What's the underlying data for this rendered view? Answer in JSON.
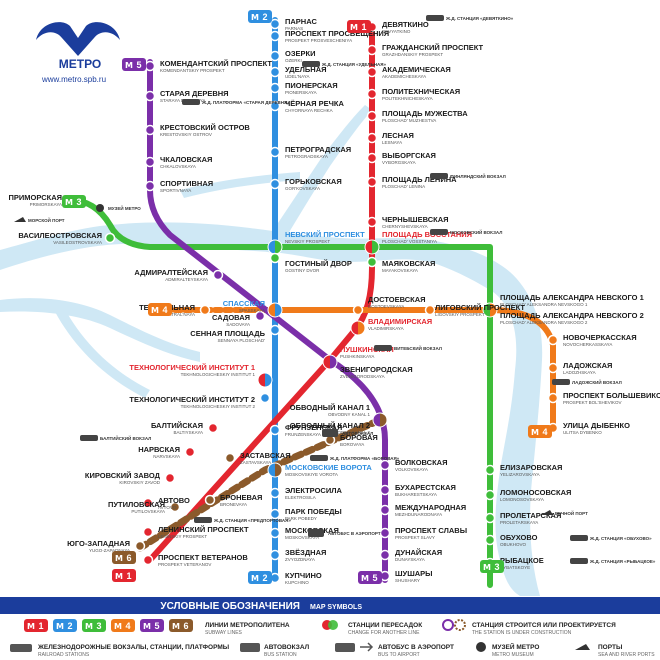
{
  "logo": {
    "text": "МЕТРО",
    "url": "www.metro.spb.ru"
  },
  "colors": {
    "line1": "#e3262f",
    "line2": "#2f8fe0",
    "line3": "#3fbd3a",
    "line4": "#f07a1a",
    "line5": "#7b2fa9",
    "line6": "#8b5a2b",
    "water": "#cde9f6",
    "legend": "#1b3d9c"
  },
  "line_badges": {
    "l1": "1",
    "l2": "2",
    "l3": "3",
    "l4": "4",
    "l5": "5",
    "l6": "6"
  },
  "stations": {
    "parnas": {
      "ru": "ПАРНАС",
      "en": "PARNAS"
    },
    "prosvescheniya": {
      "ru": "ПРОСПЕКТ ПРОСВЕЩЕНИЯ",
      "en": "PROSPEKT PROSVESCHENIYA"
    },
    "ozerki": {
      "ru": "ОЗЕРКИ",
      "en": "OZERKI"
    },
    "udelnaya": {
      "ru": "УДЕЛЬНАЯ",
      "en": "UDEL'NAYA"
    },
    "pionerskaya": {
      "ru": "ПИОНЕРСКАЯ",
      "en": "PIONERSKAYA"
    },
    "chernaya": {
      "ru": "ЧЁРНАЯ РЕЧКА",
      "en": "CHYORNAYA RECHKA"
    },
    "petrogradskaya": {
      "ru": "ПЕТРОГРАДСКАЯ",
      "en": "PETROGRADSKAYA"
    },
    "gorkovskaya": {
      "ru": "ГОРЬКОВСКАЯ",
      "en": "GOR'KOVSKAYA"
    },
    "nevsky": {
      "ru": "НЕВСКИЙ ПРОСПЕКТ",
      "en": "NEVSKIY PROSPEKT"
    },
    "gostiny": {
      "ru": "ГОСТИНЫЙ ДВОР",
      "en": "GOSTINY DVOR"
    },
    "sennaya": {
      "ru": "СЕННАЯ ПЛОЩАДЬ",
      "en": "SENNAYA PLOSCHAD'"
    },
    "spasskaya": {
      "ru": "СПАССКАЯ",
      "en": "SPASSKAYA"
    },
    "sadovaya": {
      "ru": "САДОВАЯ",
      "en": "SADOVAYA"
    },
    "tech1": {
      "ru": "ТЕХНОЛОГИЧЕСКИЙ ИНСТИТУТ 1",
      "en": "TEKHNOLOGICHESKIY INSTITUT 1"
    },
    "tech2": {
      "ru": "ТЕХНОЛОГИЧЕСКИЙ ИНСТИТУТ 2",
      "en": "TEKHNOLOGICHESKIY INSTITUT 2"
    },
    "frunzenskaya": {
      "ru": "ФРУНЗЕНСКАЯ",
      "en": "FRUNZENSKAYA"
    },
    "moskovskie": {
      "ru": "МОСКОВСКИЕ ВОРОТА",
      "en": "MOSKOVSKIYE VOROTA"
    },
    "elektrosila": {
      "ru": "ЭЛЕКТРОСИЛА",
      "en": "ELEKTROSILA"
    },
    "park_pobedy": {
      "ru": "ПАРК ПОБЕДЫ",
      "en": "PARK POBEDY"
    },
    "moskovskaya": {
      "ru": "МОСКОВСКАЯ",
      "en": "MOSKOVSKAYA"
    },
    "zvezdnaya": {
      "ru": "ЗВЁЗДНАЯ",
      "en": "ZVYOZDNAYA"
    },
    "kupchino": {
      "ru": "КУПЧИНО",
      "en": "KUPCHINO"
    },
    "devyatkino": {
      "ru": "ДЕВЯТКИНО",
      "en": "DEVYATKINO"
    },
    "grazhdansky": {
      "ru": "ГРАЖДАНСКИЙ ПРОСПЕКТ",
      "en": "GRAZHDANSKIY PROSPEKT"
    },
    "akademicheskaya": {
      "ru": "АКАДЕМИЧЕСКАЯ",
      "en": "AKADEMICHESKAYA"
    },
    "politekh": {
      "ru": "ПОЛИТЕХНИЧЕСКАЯ",
      "en": "POLITEKHNICHESKAYA"
    },
    "muzhestva": {
      "ru": "ПЛОЩАДЬ МУЖЕСТВА",
      "en": "PLOSCHAD' MUZHESTVA"
    },
    "lesnaya": {
      "ru": "ЛЕСНАЯ",
      "en": "LESNAYA"
    },
    "vyborgskaya": {
      "ru": "ВЫБОРГСКАЯ",
      "en": "VYBORGSKAYA"
    },
    "lenina": {
      "ru": "ПЛОЩАДЬ ЛЕНИНА",
      "en": "PLOSCHAD' LENINA"
    },
    "chernyshevskaya": {
      "ru": "ЧЕРНЫШЕВСКАЯ",
      "en": "CHERNYSHEVSKAYA"
    },
    "vosstaniya": {
      "ru": "ПЛОЩАДЬ ВОССТАНИЯ",
      "en": "PLOSCHAD' VOSSTANIYA"
    },
    "vladimirskaya": {
      "ru": "ВЛАДИМИРСКАЯ",
      "en": "VLADIMIRSKAYA"
    },
    "pushkinskaya": {
      "ru": "ПУШКИНСКАЯ",
      "en": "PUSHKINSKAYA"
    },
    "baltiyskaya": {
      "ru": "БАЛТИЙСКАЯ",
      "en": "BALTIYSKAYA"
    },
    "narvskaya": {
      "ru": "НАРВСКАЯ",
      "en": "NARVSKAYA"
    },
    "kirovsky": {
      "ru": "КИРОВСКИЙ ЗАВОД",
      "en": "KIROVSKIY ZAVOD"
    },
    "avtovo": {
      "ru": "АВТОВО",
      "en": "AVTOVO"
    },
    "leninsky": {
      "ru": "ЛЕНИНСКИЙ ПРОСПЕКТ",
      "en": "LENINSKIY PROSPEKT"
    },
    "veteranov": {
      "ru": "ПРОСПЕКТ ВЕТЕРАНОВ",
      "en": "PROSPEKT VETERANOV"
    },
    "primorskaya": {
      "ru": "ПРИМОРСКАЯ",
      "en": "PRIMORSKAYA"
    },
    "vasileostrovskaya": {
      "ru": "ВАСИЛЕОСТРОВСКАЯ",
      "en": "VASILEOSTROVSKAYA"
    },
    "mayakovskaya": {
      "ru": "МАЯКОВСКАЯ",
      "en": "MAYAKOVSKAYA"
    },
    "nevskogo1": {
      "ru": "ПЛОЩАДЬ АЛЕКСАНДРА НЕВСКОГО 1",
      "en": "PLOSCHAD' ALEKSANDRA NEVSKOGO 1"
    },
    "nevskogo2": {
      "ru": "ПЛОЩАДЬ АЛЕКСАНДРА НЕВСКОГО 2",
      "en": "PLOSCHAD' ALEKSANDRA NEVSKOGO 2"
    },
    "elizarovskaya": {
      "ru": "ЕЛИЗАРОВСКАЯ",
      "en": "YELIZAROVSKAYA"
    },
    "lomonosovskaya": {
      "ru": "ЛОМОНОСОВСКАЯ",
      "en": "LOMONOSOVSKAYA"
    },
    "proletarskaya": {
      "ru": "ПРОЛЕТАРСКАЯ",
      "en": "PROLETARSKAYA"
    },
    "obukhovo": {
      "ru": "ОБУХОВО",
      "en": "OBUKHOVO"
    },
    "rybatskoe": {
      "ru": "РЫБАЦКОЕ",
      "en": "RYBATSKOYE"
    },
    "teatralnaya": {
      "ru": "ТЕАТРАЛЬНАЯ",
      "en": "TEATRAL'NAYA"
    },
    "dostoevskaya": {
      "ru": "ДОСТОЕВСКАЯ",
      "en": "DOSTOEVSKAYA"
    },
    "ligovsky": {
      "ru": "ЛИГОВСКИЙ ПРОСПЕКТ",
      "en": "LIGOVSKIY PROSPEKT"
    },
    "novocherkasskaya": {
      "ru": "НОВОЧЕРКАССКАЯ",
      "en": "NOVOCHERKASSKAYA"
    },
    "ladozhskaya": {
      "ru": "ЛАДОЖСКАЯ",
      "en": "LADOZHSKAYA"
    },
    "bolshevikov": {
      "ru": "ПРОСПЕКТ БОЛЬШЕВИКОВ",
      "en": "PROSPEKT BOL'SHEVIKOV"
    },
    "dybenko": {
      "ru": "УЛИЦА ДЫБЕНКО",
      "en": "ULITSA DYBENKO"
    },
    "komendantsky": {
      "ru": "КОМЕНДАНТСКИЙ ПРОСПЕКТ",
      "en": "KOMENDANTSKIY PROSPEKT"
    },
    "staraya": {
      "ru": "СТАРАЯ ДЕРЕВНЯ",
      "en": "STARAYA DEREVNYA"
    },
    "krestovsky": {
      "ru": "КРЕСТОВСКИЙ ОСТРОВ",
      "en": "KRESTOVSKIY OSTROV"
    },
    "chkalovskaya": {
      "ru": "ЧКАЛОВСКАЯ",
      "en": "CHKALOVSKAYA"
    },
    "sportivnaya": {
      "ru": "СПОРТИВНАЯ",
      "en": "SPORTIVNAYA"
    },
    "admiralteyskaya": {
      "ru": "АДМИРАЛТЕЙСКАЯ",
      "en": "ADMIRALTEYSKAYA"
    },
    "zvenigorodskaya": {
      "ru": "ЗВЕНИГОРОДСКАЯ",
      "en": "ZVENIGORODSKAYA"
    },
    "obvodny1": {
      "ru": "ОБВОДНЫЙ КАНАЛ 1",
      "en": "OBVODNY KANAL 1"
    },
    "obvodny2": {
      "ru": "ОБВОДНЫЙ КАНАЛ 2",
      "en": "OBVODNY KANAL 2"
    },
    "volkovskaya": {
      "ru": "ВОЛКОВСКАЯ",
      "en": "VOLKOVSKAYA"
    },
    "bukharestskaya": {
      "ru": "БУХАРЕСТСКАЯ",
      "en": "BUKHARESTSKAYA"
    },
    "mezhdunarodnaya": {
      "ru": "МЕЖДУНАРОДНАЯ",
      "en": "MEZHDUNARODNAYA"
    },
    "slavy": {
      "ru": "ПРОСПЕКТ СЛАВЫ",
      "en": "PROSPEKT SLAVY"
    },
    "dunayskaya": {
      "ru": "ДУНАЙСКАЯ",
      "en": "DUNAYSKAYA"
    },
    "shushary": {
      "ru": "ШУШАРЫ",
      "en": "SHUSHARY"
    },
    "putilovskaya": {
      "ru": "ПУТИЛОВСКАЯ",
      "en": "PUTILOVSKAYA"
    },
    "yugo": {
      "ru": "ЮГО-ЗАПАДНАЯ",
      "en": "YUGO-ZAPADNAYA"
    },
    "broneyaya": {
      "ru": "БРОНЕВАЯ",
      "en": "BRONEVAYA"
    },
    "zastavskaya": {
      "ru": "ЗАСТАВСКАЯ",
      "en": "ZASTAVSKAYA"
    },
    "borovaya": {
      "ru": "БОРОВАЯ",
      "en": "BOROVAYA"
    }
  },
  "poi": {
    "devyatkino_rail": "Ж.Д. СТАНЦИЯ «ДЕВЯТКИНО»",
    "udelnaya_rail": "Ж.Д. СТАНЦИЯ «УДЕЛЬНАЯ»",
    "staraya_rail": "Ж.Д. ПЛАТФОРМА «СТАРАЯ ДЕРЕВНЯ»",
    "finlyandsky": "ФИНЛЯНДСКИЙ ВОКЗАЛ",
    "moskovsky": "МОСКОВСКИЙ ВОКЗАЛ",
    "vitebsky": "ВИТЕБСКИЙ ВОКЗАЛ",
    "ladozhsky": "ЛАДОЖСКИЙ ВОКЗАЛ",
    "baltiysky": "БАЛТИЙСКИЙ ВОКЗАЛ",
    "metro_museum": "МУЗЕЙ МЕТРО",
    "morskoy_port": "МОРСКОЙ ПОРТ",
    "borovaya_bus": "АВТОВОКЗАЛ",
    "borovaya_rail": "Ж.Д. ПЛАТФОРМА «БОРОВАЯ»",
    "broneyaya_rail": "Ж.Д. СТАНЦИЯ «ПРЕДПОРТОВАЯ»",
    "moskovskaya_bus": "АВТОБУС В АЭРОПОРТ",
    "proletarskaya_port": "РЕЧНОЙ ПОРТ",
    "rybatskoe_rail": "Ж.Д. СТАНЦИЯ «РЫБАЦКОЕ»",
    "obukhovo_rail": "Ж.Д. СТАНЦИЯ «ОБУХОВО»"
  },
  "legend": {
    "title_ru": "УСЛОВНЫЕ ОБОЗНАЧЕНИЯ",
    "title_en": "MAP SYMBOLS",
    "lines_ru": "ЛИНИИ МЕТРОПОЛИТЕНА",
    "lines_en": "SUBWAY LINES",
    "transfer_ru": "СТАНЦИИ ПЕРЕСАДОК",
    "transfer_en": "CHANGE FOR ANOTHER LINE",
    "construction_ru": "СТАНЦИЯ СТРОИТСЯ ИЛИ ПРОЕКТИРУЕТСЯ",
    "construction_en": "THE STATION IS UNDER CONSTRUCTION",
    "rail_ru": "ЖЕЛЕЗНОДОРОЖНЫЕ ВОКЗАЛЫ, СТАНЦИИ, ПЛАТФОРМЫ",
    "rail_en": "RAILROAD STATIONS",
    "bus_ru": "АВТОВОКЗАЛ",
    "bus_en": "BUS STATION",
    "airport_ru": "АВТОБУС В АЭРОПОРТ",
    "airport_en": "BUS TO AIRPORT",
    "museum_ru": "МУЗЕЙ МЕТРО",
    "museum_en": "METRO MUSEUM",
    "ports_ru": "ПОРТЫ",
    "ports_en": "SEA AND RIVER PORTS"
  }
}
